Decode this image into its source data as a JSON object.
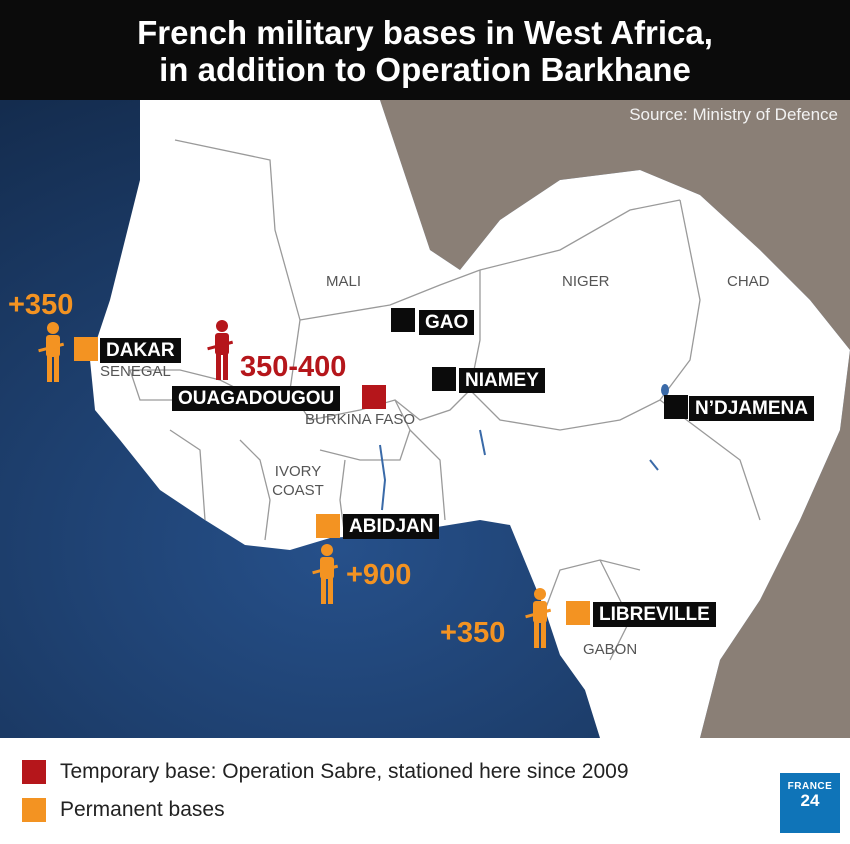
{
  "header": {
    "title_line1": "French military bases in West Africa,",
    "title_line2": "in addition to Operation Barkhane"
  },
  "source": "Source: Ministry of Defence",
  "countries": {
    "mali": "MALI",
    "niger": "NIGER",
    "chad": "CHAD",
    "senegal": "SENEGAL",
    "burkina_faso": "BURKINA FASO",
    "ivory_coast_1": "IVORY",
    "ivory_coast_2": "COAST",
    "gabon": "GABON"
  },
  "bases": {
    "gao": "GAO",
    "niamey": "NIAMEY",
    "ndjamena": "N’DJAMENA",
    "dakar": "DAKAR",
    "ouagadougou": "OUAGADOUGOU",
    "abidjan": "ABIDJAN",
    "libreville": "LIBREVILLE"
  },
  "troops": {
    "dakar": "+350",
    "ouagadougou": "350-400",
    "abidjan": "+900",
    "libreville": "+350"
  },
  "legend": {
    "temporary": "Temporary base: Operation Sabre, stationed here since 2009",
    "permanent": "Permanent bases"
  },
  "logo": {
    "line1": "FRANCE",
    "line2": "24"
  },
  "colors": {
    "temporary": "#b5161b",
    "permanent": "#f39322",
    "nonfrench_base": "#0b0b0b",
    "ocean": "#1d3f6a",
    "land": "#ffffff",
    "outside_land": "#8a7f76"
  },
  "icons": [
    "soldier-icon",
    "france24-logo"
  ]
}
